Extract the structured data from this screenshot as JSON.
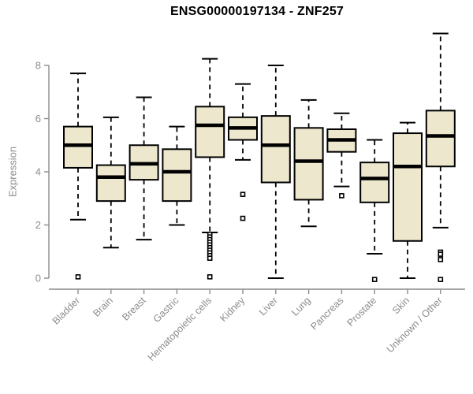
{
  "chart_data": {
    "type": "boxplot",
    "title": "ENSG00000197134 - ZNF257",
    "ylabel": "Expression",
    "xlabel": "",
    "yticks": [
      0,
      2,
      4,
      6,
      8
    ],
    "ylim": [
      0,
      9.3
    ],
    "grid": false,
    "legend": "none",
    "categories": [
      "Bladder",
      "Brain",
      "Breast",
      "Gastric",
      "Hematopoietic cells",
      "Kidney",
      "Liver",
      "Lung",
      "Pancreas",
      "Prostate",
      "Skin",
      "Unknown / Other"
    ],
    "series": [
      {
        "category": "Bladder",
        "whisker_low": 2.2,
        "q1": 4.15,
        "median": 5.0,
        "q3": 5.7,
        "whisker_high": 7.7,
        "outliers": [
          0.05
        ]
      },
      {
        "category": "Brain",
        "whisker_low": 1.15,
        "q1": 2.9,
        "median": 3.8,
        "q3": 4.25,
        "whisker_high": 6.05,
        "outliers": []
      },
      {
        "category": "Breast",
        "whisker_low": 1.45,
        "q1": 3.7,
        "median": 4.3,
        "q3": 5.0,
        "whisker_high": 6.8,
        "outliers": []
      },
      {
        "category": "Gastric",
        "whisker_low": 2.0,
        "q1": 2.9,
        "median": 4.0,
        "q3": 4.85,
        "whisker_high": 5.7,
        "outliers": []
      },
      {
        "category": "Hematopoietic cells",
        "whisker_low": 1.72,
        "q1": 4.55,
        "median": 5.75,
        "q3": 6.45,
        "whisker_high": 8.25,
        "outliers": [
          1.65,
          1.55,
          1.45,
          1.35,
          1.25,
          1.15,
          1.05,
          0.95,
          0.85,
          0.75,
          0.05
        ]
      },
      {
        "category": "Kidney",
        "whisker_low": 4.45,
        "q1": 5.2,
        "median": 5.65,
        "q3": 6.05,
        "whisker_high": 7.3,
        "outliers": [
          3.15,
          2.25
        ]
      },
      {
        "category": "Liver",
        "whisker_low": 0.0,
        "q1": 3.6,
        "median": 5.0,
        "q3": 6.1,
        "whisker_high": 8.0,
        "outliers": []
      },
      {
        "category": "Lung",
        "whisker_low": 1.95,
        "q1": 2.95,
        "median": 4.4,
        "q3": 5.65,
        "whisker_high": 6.7,
        "outliers": []
      },
      {
        "category": "Pancreas",
        "whisker_low": 3.45,
        "q1": 4.75,
        "median": 5.2,
        "q3": 5.6,
        "whisker_high": 6.2,
        "outliers": [
          3.1
        ]
      },
      {
        "category": "Prostate",
        "whisker_low": 0.92,
        "q1": 2.85,
        "median": 3.75,
        "q3": 4.35,
        "whisker_high": 5.2,
        "outliers": [
          -0.05
        ]
      },
      {
        "category": "Skin",
        "whisker_low": 0.0,
        "q1": 1.4,
        "median": 4.2,
        "q3": 5.45,
        "whisker_high": 5.85,
        "outliers": []
      },
      {
        "category": "Unknown / Other",
        "whisker_low": 1.9,
        "q1": 4.2,
        "median": 5.35,
        "q3": 6.3,
        "whisker_high": 9.2,
        "outliers": [
          0.98,
          0.9,
          0.7,
          -0.05
        ]
      }
    ],
    "colors": {
      "box_fill": "#EDE7CD",
      "box_border": "#000000",
      "median": "#000000",
      "whisker": "#000000",
      "outlier_stroke": "#000000",
      "outlier_fill": "#ffffff",
      "axis": "#8c8c8c",
      "tick_label": "#8c8c8c",
      "title": "#000000"
    }
  }
}
